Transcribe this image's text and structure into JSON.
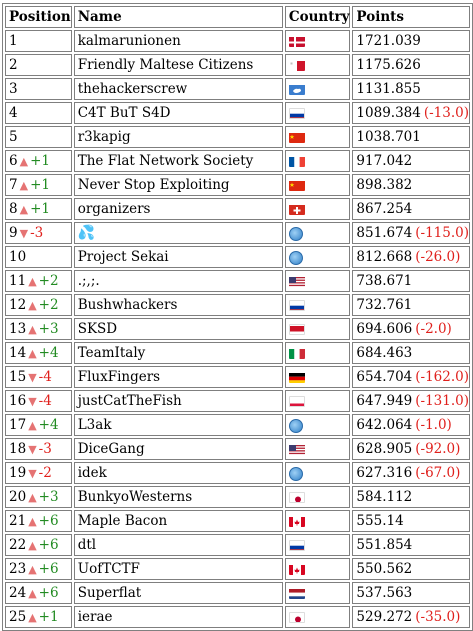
{
  "headers": {
    "position": "Position",
    "name": "Name",
    "country": "Country",
    "points": "Points"
  },
  "rows": [
    {
      "pos": "1",
      "trend": "",
      "delta": "",
      "name": "kalmarunionen",
      "flag": "dk",
      "points": "1721.039",
      "pdelta": ""
    },
    {
      "pos": "2",
      "trend": "",
      "delta": "",
      "name": "Friendly Maltese Citizens",
      "flag": "mt",
      "points": "1175.626",
      "pdelta": ""
    },
    {
      "pos": "3",
      "trend": "",
      "delta": "",
      "name": "thehackerscrew",
      "flag": "aq",
      "points": "1131.855",
      "pdelta": ""
    },
    {
      "pos": "4",
      "trend": "",
      "delta": "",
      "name": "C4T BuT S4D",
      "flag": "ru",
      "points": "1089.384",
      "pdelta": "(-13.0)"
    },
    {
      "pos": "5",
      "trend": "",
      "delta": "",
      "name": "r3kapig",
      "flag": "cn",
      "points": "1038.701",
      "pdelta": ""
    },
    {
      "pos": "6",
      "trend": "up",
      "delta": "+1",
      "name": "The Flat Network Society",
      "flag": "fr",
      "points": "917.042",
      "pdelta": ""
    },
    {
      "pos": "7",
      "trend": "up",
      "delta": "+1",
      "name": "Never Stop Exploiting",
      "flag": "cn",
      "points": "898.382",
      "pdelta": ""
    },
    {
      "pos": "8",
      "trend": "up",
      "delta": "+1",
      "name": "organizers",
      "flag": "ch",
      "points": "867.254",
      "pdelta": ""
    },
    {
      "pos": "9",
      "trend": "down",
      "delta": "-3",
      "name": "💦",
      "flag": "globe",
      "points": "851.674",
      "pdelta": "(-115.0)"
    },
    {
      "pos": "10",
      "trend": "",
      "delta": "",
      "name": "Project Sekai",
      "flag": "globe",
      "points": "812.668",
      "pdelta": "(-26.0)"
    },
    {
      "pos": "11",
      "trend": "up",
      "delta": "+2",
      "name": ".;,;.",
      "flag": "us",
      "points": "738.671",
      "pdelta": ""
    },
    {
      "pos": "12",
      "trend": "up",
      "delta": "+2",
      "name": "Bushwhackers",
      "flag": "ru",
      "points": "732.761",
      "pdelta": ""
    },
    {
      "pos": "13",
      "trend": "up",
      "delta": "+3",
      "name": "SKSD",
      "flag": "id",
      "points": "694.606",
      "pdelta": "(-2.0)"
    },
    {
      "pos": "14",
      "trend": "up",
      "delta": "+4",
      "name": "TeamItaly",
      "flag": "it",
      "points": "684.463",
      "pdelta": ""
    },
    {
      "pos": "15",
      "trend": "down",
      "delta": "-4",
      "name": "FluxFingers",
      "flag": "de",
      "points": "654.704",
      "pdelta": "(-162.0)"
    },
    {
      "pos": "16",
      "trend": "down",
      "delta": "-4",
      "name": "justCatTheFish",
      "flag": "pl",
      "points": "647.949",
      "pdelta": "(-131.0)"
    },
    {
      "pos": "17",
      "trend": "up",
      "delta": "+4",
      "name": "L3ak",
      "flag": "globe",
      "points": "642.064",
      "pdelta": "(-1.0)"
    },
    {
      "pos": "18",
      "trend": "down",
      "delta": "-3",
      "name": "DiceGang",
      "flag": "us",
      "points": "628.905",
      "pdelta": "(-92.0)"
    },
    {
      "pos": "19",
      "trend": "down",
      "delta": "-2",
      "name": "idek",
      "flag": "globe",
      "points": "627.316",
      "pdelta": "(-67.0)"
    },
    {
      "pos": "20",
      "trend": "up",
      "delta": "+3",
      "name": "BunkyoWesterns",
      "flag": "jp",
      "points": "584.112",
      "pdelta": ""
    },
    {
      "pos": "21",
      "trend": "up",
      "delta": "+6",
      "name": "Maple Bacon",
      "flag": "ca",
      "points": "555.14",
      "pdelta": ""
    },
    {
      "pos": "22",
      "trend": "up",
      "delta": "+6",
      "name": "dtl",
      "flag": "ru",
      "points": "551.854",
      "pdelta": ""
    },
    {
      "pos": "23",
      "trend": "up",
      "delta": "+6",
      "name": "UofTCTF",
      "flag": "ca",
      "points": "550.562",
      "pdelta": ""
    },
    {
      "pos": "24",
      "trend": "up",
      "delta": "+6",
      "name": "Superflat",
      "flag": "nl",
      "points": "537.563",
      "pdelta": ""
    },
    {
      "pos": "25",
      "trend": "up",
      "delta": "+1",
      "name": "ierae",
      "flag": "jp",
      "points": "529.272",
      "pdelta": "(-35.0)"
    }
  ],
  "colors": {
    "trend_arrow": "#e57373",
    "delta_up": "#228b22",
    "delta_down": "#e0201c",
    "points_delta": "#e0201c"
  },
  "icons": {
    "up": "up-triangle-icon",
    "down": "down-triangle-icon",
    "globe": "globe-icon"
  }
}
